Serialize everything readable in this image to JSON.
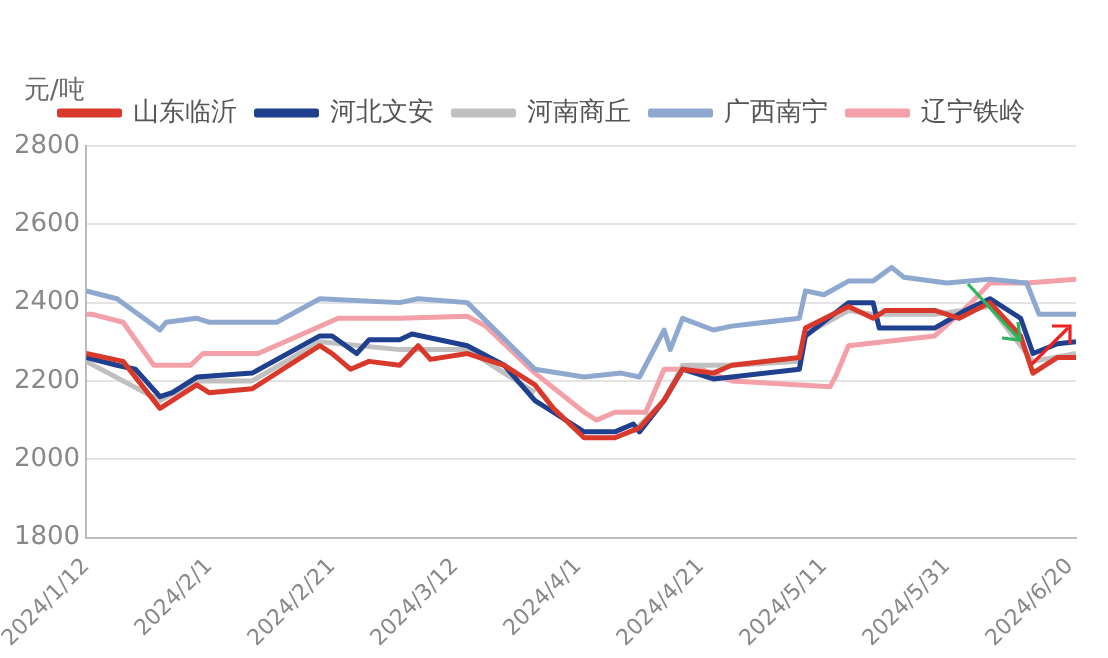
{
  "chart_data": {
    "type": "line",
    "ylabel": "元/吨",
    "legend": "top",
    "grid": "y",
    "marker": "none",
    "line_style": "solid",
    "xlim": [
      "2024-01-12",
      "2024-06-21"
    ],
    "xticks": [
      {
        "value": "2024-01-12",
        "label": "2024/1/12"
      },
      {
        "value": "2024-02-01",
        "label": "2024/2/1"
      },
      {
        "value": "2024-02-21",
        "label": "2024/2/21"
      },
      {
        "value": "2024-03-12",
        "label": "2024/3/12"
      },
      {
        "value": "2024-04-01",
        "label": "2024/4/1"
      },
      {
        "value": "2024-04-21",
        "label": "2024/4/21"
      },
      {
        "value": "2024-05-11",
        "label": "2024/5/11"
      },
      {
        "value": "2024-05-31",
        "label": "2024/5/31"
      },
      {
        "value": "2024-06-20",
        "label": "2024/6/20"
      }
    ],
    "ylim": [
      1800,
      2800
    ],
    "yticks": [
      1800,
      2000,
      2200,
      2400,
      2600,
      2800
    ],
    "series": [
      {
        "name": "山东临沂",
        "color": "#d9392b",
        "x": [
          "2024-01-12",
          "2024-01-18",
          "2024-01-24",
          "2024-01-30",
          "2024-02-01",
          "2024-02-08",
          "2024-02-19",
          "2024-02-21",
          "2024-02-24",
          "2024-02-27",
          "2024-03-03",
          "2024-03-06",
          "2024-03-08",
          "2024-03-14",
          "2024-03-20",
          "2024-03-25",
          "2024-03-28",
          "2024-04-02",
          "2024-04-07",
          "2024-04-11",
          "2024-04-15",
          "2024-04-18",
          "2024-04-23",
          "2024-04-26",
          "2024-05-07",
          "2024-05-08",
          "2024-05-15",
          "2024-05-19",
          "2024-05-21",
          "2024-05-29",
          "2024-06-02",
          "2024-06-07",
          "2024-06-12",
          "2024-06-14",
          "2024-06-18",
          "2024-06-21"
        ],
        "values": [
          2270,
          2250,
          2130,
          2190,
          2170,
          2180,
          2290,
          2270,
          2230,
          2250,
          2240,
          2290,
          2255,
          2270,
          2240,
          2190,
          2130,
          2055,
          2055,
          2080,
          2150,
          2230,
          2220,
          2240,
          2260,
          2335,
          2390,
          2360,
          2380,
          2380,
          2360,
          2400,
          2315,
          2220,
          2260,
          2260
        ]
      },
      {
        "name": "河北文安",
        "color": "#1f3f8f",
        "x": [
          "2024-01-12",
          "2024-01-17",
          "2024-01-20",
          "2024-01-24",
          "2024-01-26",
          "2024-01-30",
          "2024-02-08",
          "2024-02-19",
          "2024-02-21",
          "2024-02-25",
          "2024-02-27",
          "2024-03-03",
          "2024-03-05",
          "2024-03-14",
          "2024-03-20",
          "2024-03-25",
          "2024-03-28",
          "2024-04-02",
          "2024-04-07",
          "2024-04-10",
          "2024-04-11",
          "2024-04-15",
          "2024-04-18",
          "2024-04-23",
          "2024-04-26",
          "2024-05-07",
          "2024-05-08",
          "2024-05-15",
          "2024-05-19",
          "2024-05-20",
          "2024-05-29",
          "2024-06-03",
          "2024-06-07",
          "2024-06-12",
          "2024-06-14",
          "2024-06-18",
          "2024-06-21"
        ],
        "values": [
          2260,
          2240,
          2230,
          2160,
          2170,
          2210,
          2220,
          2315,
          2315,
          2270,
          2305,
          2305,
          2320,
          2290,
          2240,
          2150,
          2120,
          2070,
          2070,
          2090,
          2070,
          2150,
          2230,
          2205,
          2210,
          2230,
          2315,
          2400,
          2400,
          2335,
          2335,
          2380,
          2410,
          2360,
          2270,
          2295,
          2300
        ]
      },
      {
        "name": "河南商丘",
        "color": "#c0c0c0",
        "x": [
          "2024-01-12",
          "2024-01-24",
          "2024-01-30",
          "2024-02-08",
          "2024-02-19",
          "2024-03-03",
          "2024-03-14",
          "2024-03-25",
          "2024-04-02",
          "2024-04-10",
          "2024-04-15",
          "2024-04-18",
          "2024-04-26",
          "2024-05-07",
          "2024-05-08",
          "2024-05-15",
          "2024-05-19",
          "2024-05-29",
          "2024-06-07",
          "2024-06-14",
          "2024-06-21"
        ],
        "values": [
          2250,
          2150,
          2200,
          2200,
          2300,
          2280,
          2280,
          2170,
          null,
          2070,
          2150,
          2240,
          2240,
          2250,
          2320,
          2380,
          2370,
          2370,
          2390,
          2250,
          2270
        ]
      },
      {
        "name": "广西南宁",
        "color": "#8fa8d0",
        "x": [
          "2024-01-12",
          "2024-01-17",
          "2024-01-24",
          "2024-01-25",
          "2024-01-30",
          "2024-02-01",
          "2024-02-12",
          "2024-02-19",
          "2024-03-03",
          "2024-03-06",
          "2024-03-14",
          "2024-03-25",
          "2024-04-02",
          "2024-04-08",
          "2024-04-11",
          "2024-04-15",
          "2024-04-16",
          "2024-04-18",
          "2024-04-23",
          "2024-04-26",
          "2024-05-07",
          "2024-05-08",
          "2024-05-11",
          "2024-05-15",
          "2024-05-19",
          "2024-05-22",
          "2024-05-24",
          "2024-05-31",
          "2024-06-07",
          "2024-06-13",
          "2024-06-15",
          "2024-06-21"
        ],
        "values": [
          2430,
          2410,
          2330,
          2350,
          2360,
          2350,
          2350,
          2410,
          2400,
          2410,
          2400,
          2230,
          2210,
          2220,
          2210,
          2330,
          2280,
          2360,
          2330,
          2340,
          2360,
          2430,
          2420,
          2455,
          2455,
          2490,
          2465,
          2450,
          2460,
          2450,
          2370,
          2370
        ]
      },
      {
        "name": "辽宁铁岭",
        "color": "#f4a0a8",
        "x": [
          "2024-01-12",
          "2024-01-13",
          "2024-01-18",
          "2024-01-23",
          "2024-01-29",
          "2024-01-31",
          "2024-02-09",
          "2024-02-22",
          "2024-03-03",
          "2024-03-14",
          "2024-03-17",
          "2024-03-25",
          "2024-04-02",
          "2024-04-04",
          "2024-04-07",
          "2024-04-12",
          "2024-04-15",
          "2024-04-21",
          "2024-04-26",
          "2024-05-12",
          "2024-05-13",
          "2024-05-15",
          "2024-05-29",
          "2024-06-04",
          "2024-06-07",
          "2024-06-13",
          "2024-06-21"
        ],
        "values": [
          2370,
          2370,
          2350,
          2240,
          2240,
          2270,
          2270,
          2360,
          2360,
          2365,
          2340,
          2220,
          2120,
          2100,
          2120,
          2120,
          2230,
          2230,
          2200,
          2185,
          2215,
          2290,
          2315,
          2400,
          2450,
          2450,
          2460
        ]
      }
    ]
  }
}
